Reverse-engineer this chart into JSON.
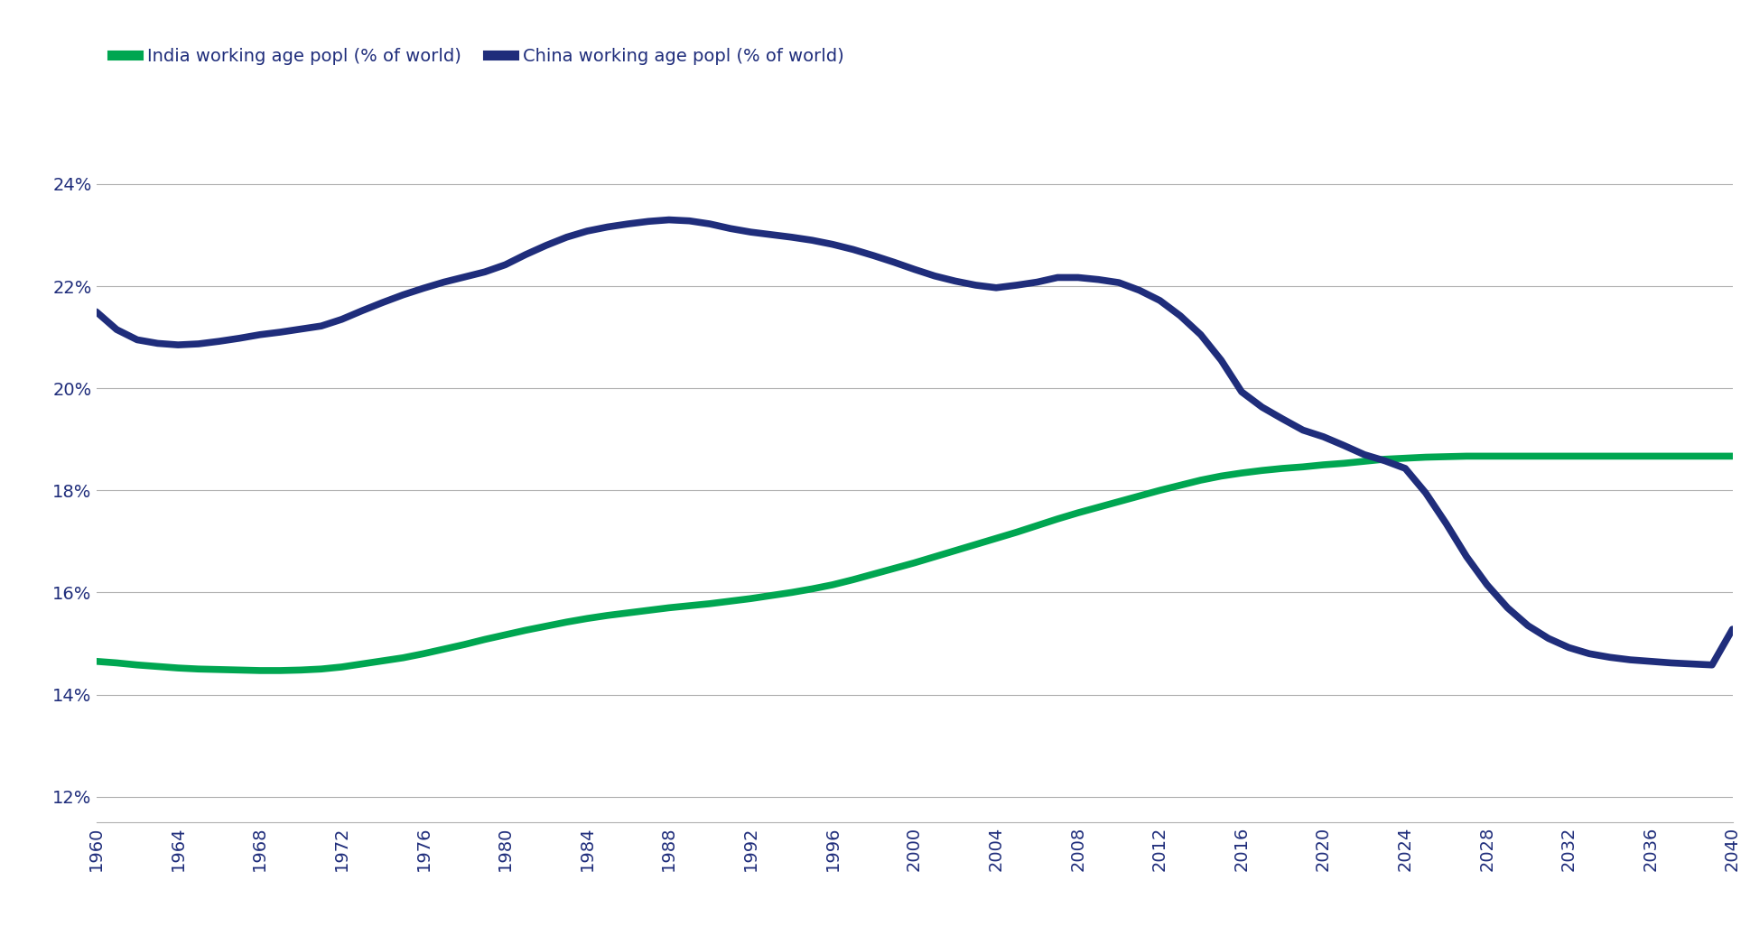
{
  "india_color": "#00a651",
  "china_color": "#1f2d7b",
  "background_color": "#ffffff",
  "grid_color": "#b0b0b0",
  "text_color": "#1f2d7b",
  "legend_india": "India working age popl (% of world)",
  "legend_china": "China working age popl (% of world)",
  "ylim": [
    11.5,
    25.2
  ],
  "yticks": [
    12,
    14,
    16,
    18,
    20,
    22,
    24
  ],
  "xlim": [
    1960,
    2040
  ],
  "xticks": [
    1960,
    1964,
    1968,
    1972,
    1976,
    1980,
    1984,
    1988,
    1992,
    1996,
    2000,
    2004,
    2008,
    2012,
    2016,
    2020,
    2024,
    2028,
    2032,
    2036,
    2040
  ],
  "india_data": {
    "years": [
      1960,
      1961,
      1962,
      1963,
      1964,
      1965,
      1966,
      1967,
      1968,
      1969,
      1970,
      1971,
      1972,
      1973,
      1974,
      1975,
      1976,
      1977,
      1978,
      1979,
      1980,
      1981,
      1982,
      1983,
      1984,
      1985,
      1986,
      1987,
      1988,
      1989,
      1990,
      1991,
      1992,
      1993,
      1994,
      1995,
      1996,
      1997,
      1998,
      1999,
      2000,
      2001,
      2002,
      2003,
      2004,
      2005,
      2006,
      2007,
      2008,
      2009,
      2010,
      2011,
      2012,
      2013,
      2014,
      2015,
      2016,
      2017,
      2018,
      2019,
      2020,
      2021,
      2022,
      2023,
      2024,
      2025,
      2026,
      2027,
      2028,
      2029,
      2030,
      2031,
      2032,
      2033,
      2034,
      2035,
      2036,
      2037,
      2038,
      2039,
      2040
    ],
    "values": [
      14.65,
      14.62,
      14.58,
      14.55,
      14.52,
      14.5,
      14.49,
      14.48,
      14.47,
      14.47,
      14.48,
      14.5,
      14.54,
      14.6,
      14.66,
      14.72,
      14.8,
      14.89,
      14.98,
      15.08,
      15.17,
      15.26,
      15.34,
      15.42,
      15.49,
      15.55,
      15.6,
      15.65,
      15.7,
      15.74,
      15.78,
      15.83,
      15.88,
      15.94,
      16.0,
      16.07,
      16.15,
      16.25,
      16.36,
      16.47,
      16.58,
      16.7,
      16.82,
      16.94,
      17.06,
      17.18,
      17.31,
      17.44,
      17.56,
      17.67,
      17.78,
      17.89,
      18.0,
      18.1,
      18.2,
      18.28,
      18.34,
      18.39,
      18.43,
      18.46,
      18.5,
      18.53,
      18.57,
      18.61,
      18.63,
      18.65,
      18.66,
      18.67,
      18.67,
      18.67,
      18.67,
      18.67,
      18.67,
      18.67,
      18.67,
      18.67,
      18.67,
      18.67,
      18.67,
      18.67,
      18.67
    ]
  },
  "china_data": {
    "years": [
      1960,
      1961,
      1962,
      1963,
      1964,
      1965,
      1966,
      1967,
      1968,
      1969,
      1970,
      1971,
      1972,
      1973,
      1974,
      1975,
      1976,
      1977,
      1978,
      1979,
      1980,
      1981,
      1982,
      1983,
      1984,
      1985,
      1986,
      1987,
      1988,
      1989,
      1990,
      1991,
      1992,
      1993,
      1994,
      1995,
      1996,
      1997,
      1998,
      1999,
      2000,
      2001,
      2002,
      2003,
      2004,
      2005,
      2006,
      2007,
      2008,
      2009,
      2010,
      2011,
      2012,
      2013,
      2014,
      2015,
      2016,
      2017,
      2018,
      2019,
      2020,
      2021,
      2022,
      2023,
      2024,
      2025,
      2026,
      2027,
      2028,
      2029,
      2030,
      2031,
      2032,
      2033,
      2034,
      2035,
      2036,
      2037,
      2038,
      2039,
      2040
    ],
    "values": [
      21.5,
      21.15,
      20.95,
      20.88,
      20.85,
      20.87,
      20.92,
      20.98,
      21.05,
      21.1,
      21.16,
      21.22,
      21.35,
      21.52,
      21.68,
      21.83,
      21.96,
      22.08,
      22.18,
      22.28,
      22.42,
      22.62,
      22.8,
      22.96,
      23.08,
      23.16,
      23.22,
      23.27,
      23.3,
      23.28,
      23.22,
      23.13,
      23.06,
      23.01,
      22.96,
      22.9,
      22.82,
      22.72,
      22.6,
      22.47,
      22.33,
      22.2,
      22.1,
      22.02,
      21.97,
      22.02,
      22.08,
      22.17,
      22.17,
      22.13,
      22.07,
      21.92,
      21.72,
      21.42,
      21.05,
      20.55,
      19.93,
      19.63,
      19.4,
      19.18,
      19.05,
      18.88,
      18.7,
      18.58,
      18.43,
      17.95,
      17.35,
      16.7,
      16.15,
      15.7,
      15.35,
      15.1,
      14.92,
      14.8,
      14.73,
      14.68,
      14.65,
      14.62,
      14.6,
      14.58,
      15.28
    ]
  },
  "line_width": 5.5,
  "legend_fontsize": 14,
  "tick_fontsize": 14,
  "figsize": [
    19.38,
    10.47
  ],
  "dpi": 100
}
